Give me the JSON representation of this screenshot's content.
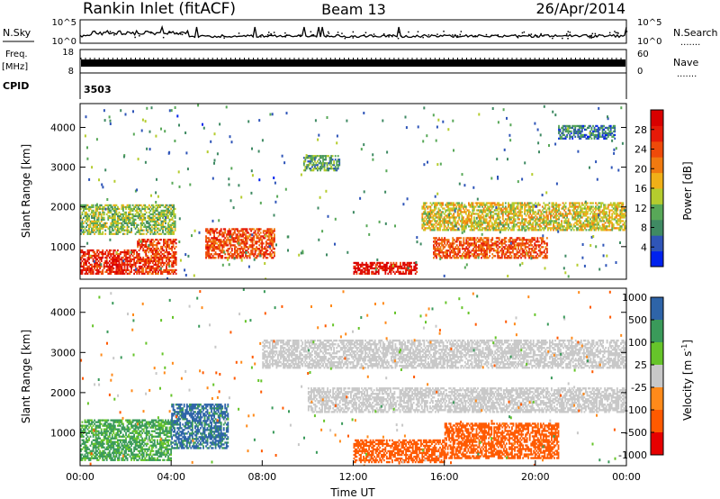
{
  "header": {
    "station": "Rankin Inlet (fitACF)",
    "beam": "Beam 13",
    "date": "26/Apr/2014"
  },
  "top_panels": {
    "nsky_label": "N.Sky",
    "nsearch_label": "N.Search",
    "nsky_ticks": [
      "10^5",
      "10^0"
    ],
    "nsearch_ticks": [
      "10^5",
      "10^0"
    ],
    "freq_label": "Freq.",
    "freq_unit": "[MHz]",
    "freq_ticks": [
      "18",
      "8"
    ],
    "nave_label": "Nave",
    "nave_ticks": [
      "60",
      "0"
    ],
    "cpid_label": "CPID",
    "cpid_value": "3503",
    "dots": "......."
  },
  "colors": {
    "power": [
      "#0022ee",
      "#2f55b8",
      "#3f8a63",
      "#58a858",
      "#b5cc2e",
      "#f0b018",
      "#f07a10",
      "#ee4a0a",
      "#e61a08",
      "#d90000"
    ],
    "velocity_scale": [
      "#e60000",
      "#ff5a00",
      "#ff8a1a",
      "#ffbb44",
      "#c8c8c8",
      "#66c42a",
      "#3a9a5a",
      "#2e64a8",
      "#1b3fa8"
    ],
    "gray": "#c4c4c4"
  },
  "chart_data": [
    {
      "type": "heatmap",
      "name": "power",
      "xlabel": "",
      "ylabel": "Slant Range [km]",
      "xlim": [
        0,
        24
      ],
      "ylim": [
        180,
        4600
      ],
      "yticks": [
        1000,
        2000,
        3000,
        4000
      ],
      "yticklabels": [
        "1000",
        "2000",
        "3000",
        "4000"
      ],
      "colorbar": {
        "label": "Power [dB]",
        "range": [
          0,
          32
        ],
        "ticks": [
          4,
          8,
          12,
          16,
          20,
          24,
          28
        ],
        "ticklabels": [
          "4",
          "8",
          "12",
          "16",
          "20",
          "24",
          "28"
        ]
      },
      "features": [
        {
          "t": [
            0.0,
            2.5
          ],
          "r": [
            300,
            900
          ],
          "value": 27
        },
        {
          "t": [
            2.5,
            4.2
          ],
          "r": [
            300,
            1200
          ],
          "value": 25
        },
        {
          "t": [
            0.0,
            4.2
          ],
          "r": [
            1300,
            2050
          ],
          "value": 13
        },
        {
          "t": [
            5.5,
            8.5
          ],
          "r": [
            700,
            1450
          ],
          "value": 24
        },
        {
          "t": [
            9.8,
            11.4
          ],
          "r": [
            2900,
            3300
          ],
          "value": 10
        },
        {
          "t": [
            12.0,
            14.8
          ],
          "r": [
            300,
            600
          ],
          "value": 29
        },
        {
          "t": [
            15.5,
            20.5
          ],
          "r": [
            700,
            1200
          ],
          "value": 24
        },
        {
          "t": [
            15.0,
            24.0
          ],
          "r": [
            1400,
            2100
          ],
          "value": 16
        },
        {
          "t": [
            21.0,
            23.5
          ],
          "r": [
            3700,
            4050
          ],
          "value": 7
        }
      ]
    },
    {
      "type": "heatmap",
      "name": "velocity",
      "xlabel": "Time UT",
      "ylabel": "Slant Range [km]",
      "xlim": [
        0,
        24
      ],
      "ylim": [
        180,
        4600
      ],
      "xticks": [
        0,
        4,
        8,
        12,
        16,
        20,
        24
      ],
      "xticklabels": [
        "00:00",
        "04:00",
        "08:00",
        "12:00",
        "16:00",
        "20:00",
        "00:00"
      ],
      "yticks": [
        1000,
        2000,
        3000,
        4000
      ],
      "yticklabels": [
        "1000",
        "2000",
        "3000",
        "4000"
      ],
      "colorbar": {
        "label": "Velocity [m s",
        "label_sup": "-1",
        "label_end": "]",
        "boundaries": [
          -1000,
          -500,
          -100,
          -25,
          25,
          100,
          500,
          1000
        ],
        "ticklabels": [
          "-1000",
          "-500",
          "-100",
          "-25",
          "25",
          "100",
          "500",
          "1000"
        ]
      },
      "features": [
        {
          "t": [
            0.0,
            4.0
          ],
          "r": [
            300,
            1300
          ],
          "value": 120
        },
        {
          "t": [
            4.0,
            6.5
          ],
          "r": [
            600,
            1700
          ],
          "value": 600
        },
        {
          "t": [
            12.0,
            16.0
          ],
          "r": [
            250,
            800
          ],
          "value": -300
        },
        {
          "t": [
            16.0,
            21.0
          ],
          "r": [
            350,
            1250
          ],
          "value": -200
        },
        {
          "t": [
            10.0,
            24.0
          ],
          "r": [
            1500,
            2100
          ],
          "value": 0
        },
        {
          "t": [
            8.0,
            24.0
          ],
          "r": [
            2600,
            3300
          ],
          "value": 0
        }
      ]
    }
  ]
}
